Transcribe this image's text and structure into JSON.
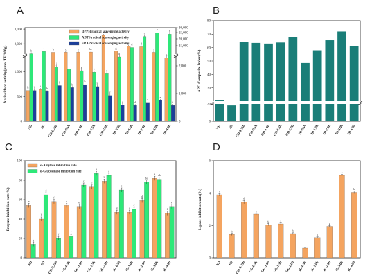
{
  "chart_data": [
    {
      "panel": "A",
      "type": "bar",
      "ylabel": "Antioxidant activity(μmol TE/100g)",
      "categories": [
        "ND",
        "SD",
        "GD-0.25h",
        "GD-0.5h",
        "GD-1.0h",
        "GD-1.5h",
        "GD-2.0h",
        "ID-0.5h",
        "ID-1.0h",
        "ID-2.0h",
        "ID-3.0h",
        "ID-4.0h"
      ],
      "left_ticks_lower": [
        "0",
        "500",
        "1,000"
      ],
      "left_ticks_upper": [
        "2,000",
        "3,000"
      ],
      "right_ticks_lower": [
        "0",
        "1,000",
        "2,000"
      ],
      "right_ticks_upper": [
        "15,000",
        "20,000",
        "25,000",
        "30,000"
      ],
      "series": [
        {
          "name": "DPPH radical scavenging activity",
          "color": "#f4a460",
          "values": [
            620,
            640,
            1420,
            1430,
            1430,
            1440,
            2580,
            1500,
            1850,
            1800,
            1420,
            1280
          ],
          "letters": [
            "h",
            "i",
            "b",
            "c",
            "e",
            "bc",
            "a",
            "g",
            "e",
            "d",
            "f",
            "g"
          ]
        },
        {
          "name": "ABTS radical scavenging activity",
          "color": "#2ee879",
          "values": [
            1320,
            1480,
            1100,
            1050,
            1020,
            990,
            960,
            1300,
            1750,
            2500,
            2760,
            2660
          ],
          "letters": [
            "h",
            "i",
            "j",
            "i",
            "k",
            "i",
            "f",
            "g",
            "d",
            "c",
            "a",
            "b"
          ]
        },
        {
          "name": "FRAP radical scavenging activity",
          "color": "#1c3f9a",
          "values": [
            620,
            600,
            720,
            680,
            740,
            700,
            520,
            330,
            320,
            380,
            420,
            320
          ],
          "letters": [
            "b",
            "b",
            "b",
            "b",
            "b",
            "b",
            "f",
            "g",
            "d",
            "c",
            "e",
            "i"
          ]
        }
      ]
    },
    {
      "panel": "B",
      "type": "bar",
      "ylabel": "APC Composite Index(%)",
      "categories": [
        "ND",
        "SD",
        "GD-0.25h",
        "GD-0.5h",
        "GD-1.0h",
        "GD-1.5h",
        "GD-2.0h",
        "ID-0.5h",
        "ID-1.0h",
        "ID-2.0h",
        "ID-3.0h",
        "ID-4.0h"
      ],
      "ylim": [
        0,
        80
      ],
      "yticks": [
        0,
        20,
        30,
        40,
        50,
        60,
        70,
        80
      ],
      "values": [
        20.5,
        18.3,
        64,
        63.5,
        63,
        63.8,
        68,
        48.5,
        58,
        65.5,
        72,
        61
      ],
      "color": "#1a7e78"
    },
    {
      "panel": "C",
      "type": "bar",
      "ylabel": "Enzyme inhibition rate(%)",
      "categories": [
        "ND",
        "SD",
        "GD-0.25h",
        "GD-0.5h",
        "GD-1.0h",
        "GD-1.5h",
        "GD-2.0h",
        "ID-0.5h",
        "ID-1.0h",
        "ID-2.0h",
        "ID-3.0h",
        "ID-4.0h"
      ],
      "ylim": [
        0,
        100
      ],
      "yticks": [
        0,
        20,
        40,
        60,
        80,
        100
      ],
      "series": [
        {
          "name": "α-Amylase inhibition rate",
          "color": "#f4a460",
          "values": [
            54,
            40,
            58,
            54,
            53,
            73,
            79,
            47,
            47,
            59,
            82,
            46
          ],
          "letters": [
            "e",
            "h",
            "f",
            "e",
            "e",
            "c",
            "b",
            "g",
            "g",
            "d",
            "a",
            "f"
          ]
        },
        {
          "name": "α-Glucosidase inhibition rate",
          "color": "#2ee879",
          "values": [
            14,
            65,
            20,
            22,
            75,
            87,
            85,
            70,
            50,
            78,
            81,
            53
          ],
          "letters": [
            "g",
            "d",
            "f",
            "f",
            "c",
            "a",
            "a",
            "b",
            "c",
            "bc",
            "ab",
            "e"
          ]
        }
      ]
    },
    {
      "panel": "D",
      "type": "bar",
      "ylabel": "Lipase inhibition rate(%)",
      "categories": [
        "ND",
        "SD",
        "GD-0.25h",
        "GD-0.5h",
        "GD-1.0h",
        "GD-1.5h",
        "GD-2.0h",
        "ID-0.5h",
        "ID-1.0h",
        "ID-2.0h",
        "ID-3.0h",
        "ID-4.0h"
      ],
      "ylim": [
        0,
        6
      ],
      "yticks": [
        0,
        2,
        4,
        6
      ],
      "values": [
        3.9,
        1.45,
        3.45,
        2.7,
        2.05,
        2.1,
        1.5,
        0.6,
        1.25,
        1.95,
        5.1,
        4.05
      ],
      "errors": [
        0.08,
        0.06,
        0.1,
        0.05,
        0.06,
        0.07,
        0.05,
        0.04,
        0.05,
        0.05,
        0.07,
        0.08
      ],
      "letters": [
        "c",
        "h",
        "d",
        "e",
        "fg",
        "f",
        "h",
        "j",
        "i",
        "g",
        "a",
        "b"
      ],
      "color": "#f4a460"
    }
  ]
}
